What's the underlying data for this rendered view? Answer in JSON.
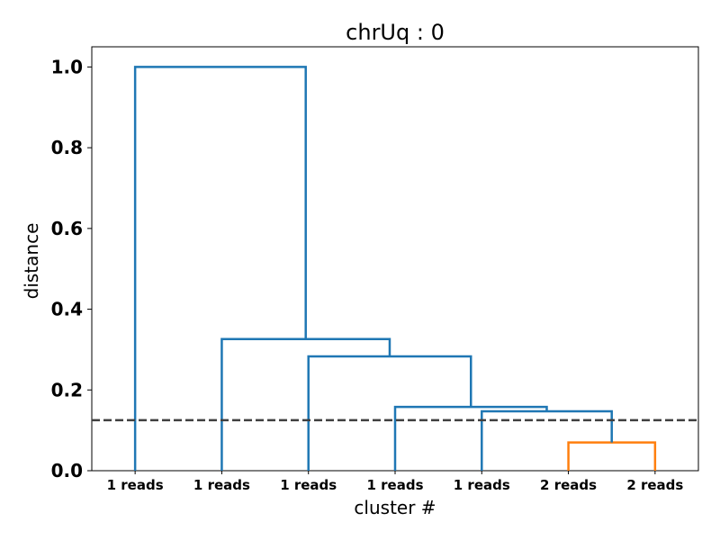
{
  "chart_data": {
    "type": "dendrogram",
    "title": "chrUq : 0",
    "xlabel": "cluster #",
    "ylabel": "distance",
    "ylim": [
      0,
      1.05
    ],
    "yticks": [
      "0.0",
      "0.2",
      "0.4",
      "0.6",
      "0.8",
      "1.0"
    ],
    "leaves": [
      "1 reads",
      "1 reads",
      "1 reads",
      "1 reads",
      "1 reads",
      "2 reads",
      "2 reads"
    ],
    "threshold": 0.125,
    "colors": {
      "above_threshold": "#1f77b4",
      "cluster": "#ff7f0e",
      "threshold_line": "#404040"
    },
    "links": [
      {
        "left": 5,
        "right": 6,
        "height": 0.07,
        "color": "cluster"
      },
      {
        "left": 4,
        "right": "5-6",
        "height": 0.147,
        "color": "above_threshold"
      },
      {
        "left": 3,
        "right": "4-6",
        "height": 0.158,
        "color": "above_threshold"
      },
      {
        "left": 2,
        "right": "3-6",
        "height": 0.283,
        "color": "above_threshold"
      },
      {
        "left": 1,
        "right": "2-6",
        "height": 0.326,
        "color": "above_threshold"
      },
      {
        "left": 0,
        "right": "1-6",
        "height": 1.0,
        "color": "above_threshold"
      }
    ]
  }
}
